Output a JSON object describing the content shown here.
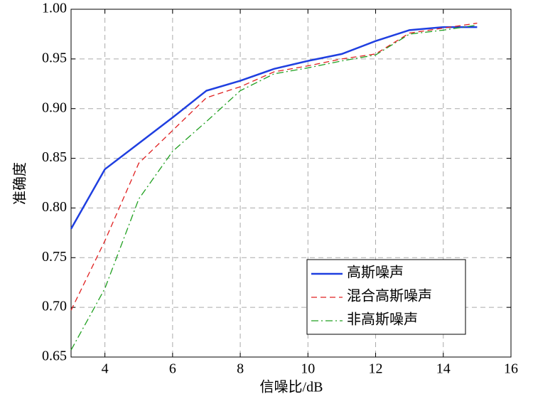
{
  "chart_data": {
    "type": "line",
    "xlabel": "信噪比/dB",
    "ylabel": "准确度",
    "x": [
      3,
      4,
      5,
      6,
      7,
      8,
      9,
      10,
      11,
      12,
      13,
      14,
      15
    ],
    "series": [
      {
        "name": "高斯噪声",
        "color": "#1f3fe0",
        "linestyle": "solid",
        "values": [
          0.779,
          0.839,
          0.865,
          0.891,
          0.918,
          0.928,
          0.94,
          0.948,
          0.955,
          0.968,
          0.979,
          0.982,
          0.982
        ]
      },
      {
        "name": "混合高斯噪声",
        "color": "#e02020",
        "linestyle": "dashed",
        "values": [
          0.697,
          0.767,
          0.845,
          0.878,
          0.911,
          0.922,
          0.937,
          0.943,
          0.95,
          0.955,
          0.976,
          0.981,
          0.986
        ]
      },
      {
        "name": "非高斯噪声",
        "color": "#20a020",
        "linestyle": "dashdot",
        "values": [
          0.657,
          0.719,
          0.809,
          0.857,
          0.887,
          0.918,
          0.935,
          0.941,
          0.948,
          0.954,
          0.975,
          0.979,
          0.984
        ]
      }
    ],
    "xlim": [
      3,
      16
    ],
    "xticks": [
      4,
      6,
      8,
      10,
      12,
      14,
      16
    ],
    "ylim": [
      0.65,
      1.0
    ],
    "yticks": [
      0.65,
      {
        "value": 0.7,
        "label": "0.70"
      },
      0.75,
      {
        "value": 0.8,
        "label": "0.80"
      },
      0.85,
      {
        "value": 0.9,
        "label": "0.90"
      },
      0.95,
      {
        "value": 1.0,
        "label": "1.00"
      }
    ],
    "grid": true,
    "legend": "lower right"
  }
}
